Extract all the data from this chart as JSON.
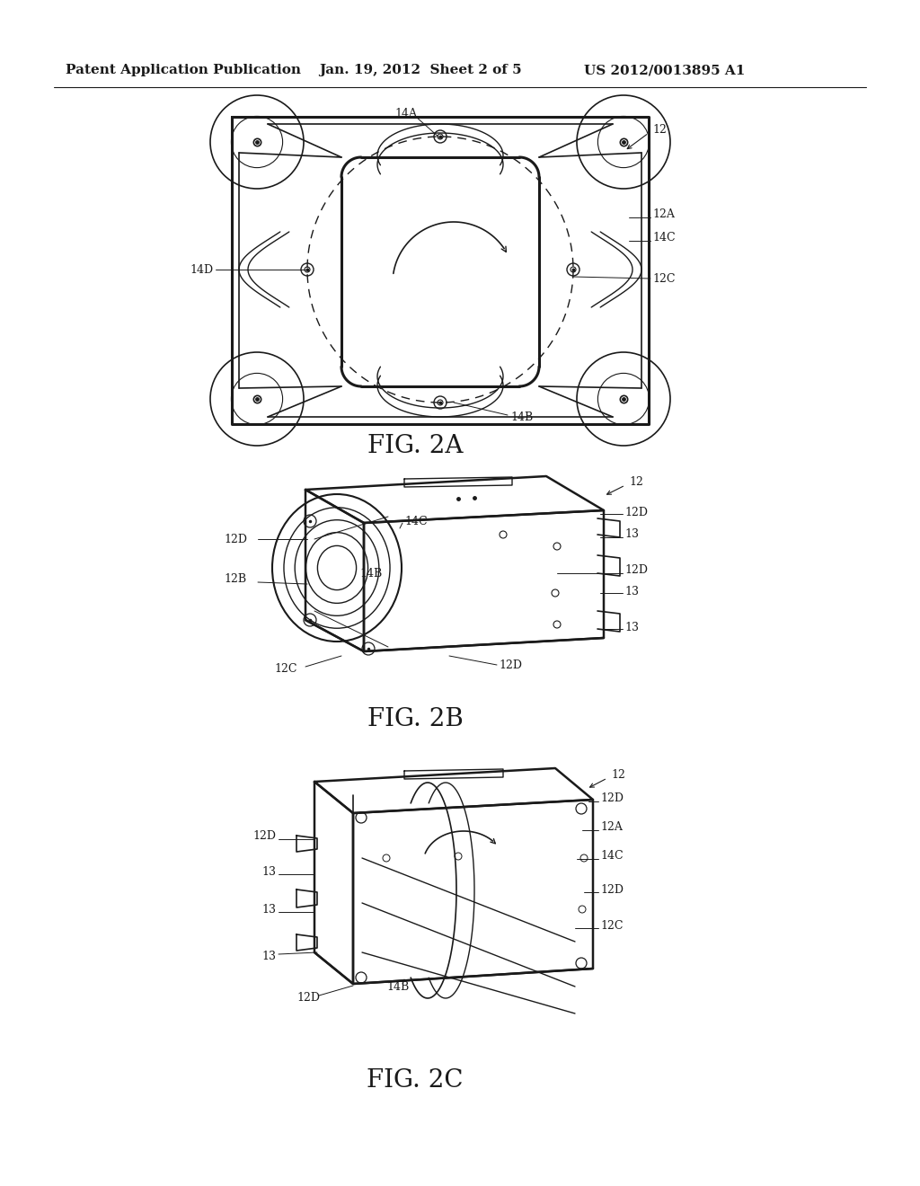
{
  "page_width": 10.24,
  "page_height": 13.2,
  "background_color": "#ffffff",
  "header_text_left": "Patent Application Publication",
  "header_text_mid": "Jan. 19, 2012  Sheet 2 of 5",
  "header_text_right": "US 2012/0013895 A1",
  "line_color": "#1a1a1a",
  "fig2a_label": "FIG. 2A",
  "fig2b_label": "FIG. 2B",
  "fig2c_label": "FIG. 2C",
  "label_fontsize": 20,
  "anno_fontsize": 9,
  "header_fontsize": 11
}
